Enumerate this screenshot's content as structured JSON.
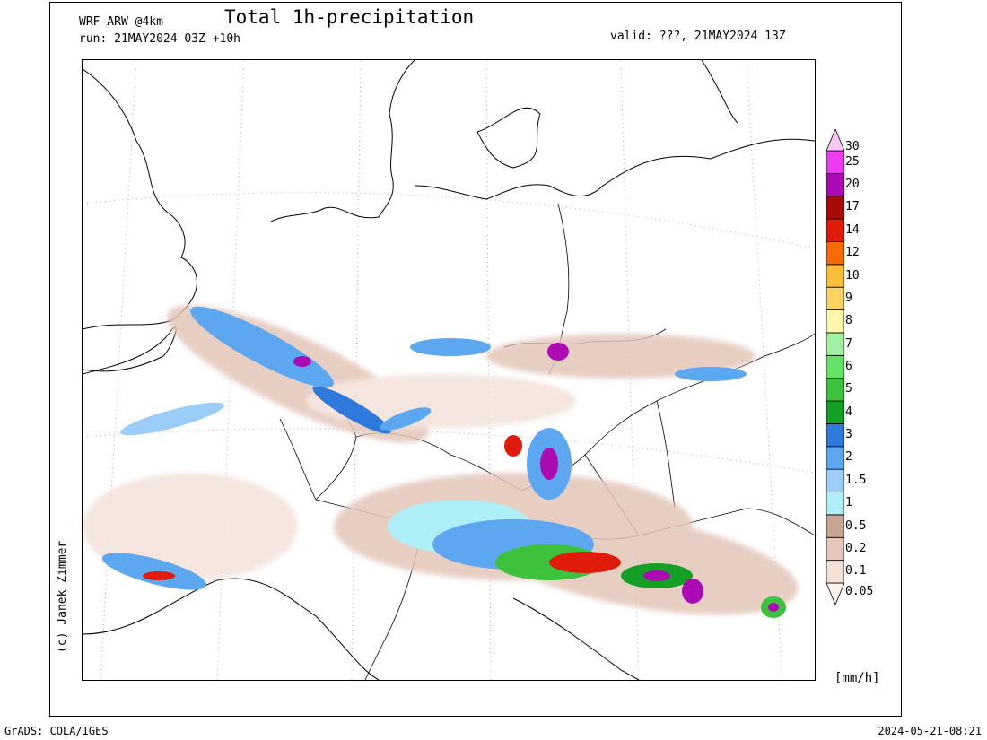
{
  "header": {
    "model": "WRF-ARW @4km",
    "run": "run: 21MAY2024 03Z +10h",
    "title": "Total 1h-precipitation",
    "valid": "valid: ???, 21MAY2024 13Z"
  },
  "credit": "(c) Janek Zimmer",
  "units": "[mm/h]",
  "footer": {
    "software": "GrADS: COLA/IGES",
    "timestamp": "2024-05-21-08:21"
  },
  "legend": {
    "levels": [
      "0.05",
      "0.1",
      "0.2",
      "0.5",
      "1",
      "1.5",
      "2",
      "3",
      "4",
      "5",
      "6",
      "7",
      "8",
      "9",
      "10",
      "12",
      "14",
      "17",
      "20",
      "25",
      "30"
    ],
    "colors": [
      "#fdf2ec",
      "#f3e1d8",
      "#e3c6b9",
      "#c9a596",
      "#aeeef6",
      "#9ccdf8",
      "#5ca7f0",
      "#2f79dc",
      "#14a024",
      "#3cc23c",
      "#66e266",
      "#a0f0a0",
      "#fdf7aa",
      "#fad364",
      "#fbbd3a",
      "#f76a08",
      "#e11b0a",
      "#a80a08",
      "#ab0ab4",
      "#eb3cf0",
      "#fcc8f8"
    ]
  },
  "map": {
    "land_color": "#ffffff",
    "border_color": "#000000",
    "graticule_color": "#999999"
  }
}
